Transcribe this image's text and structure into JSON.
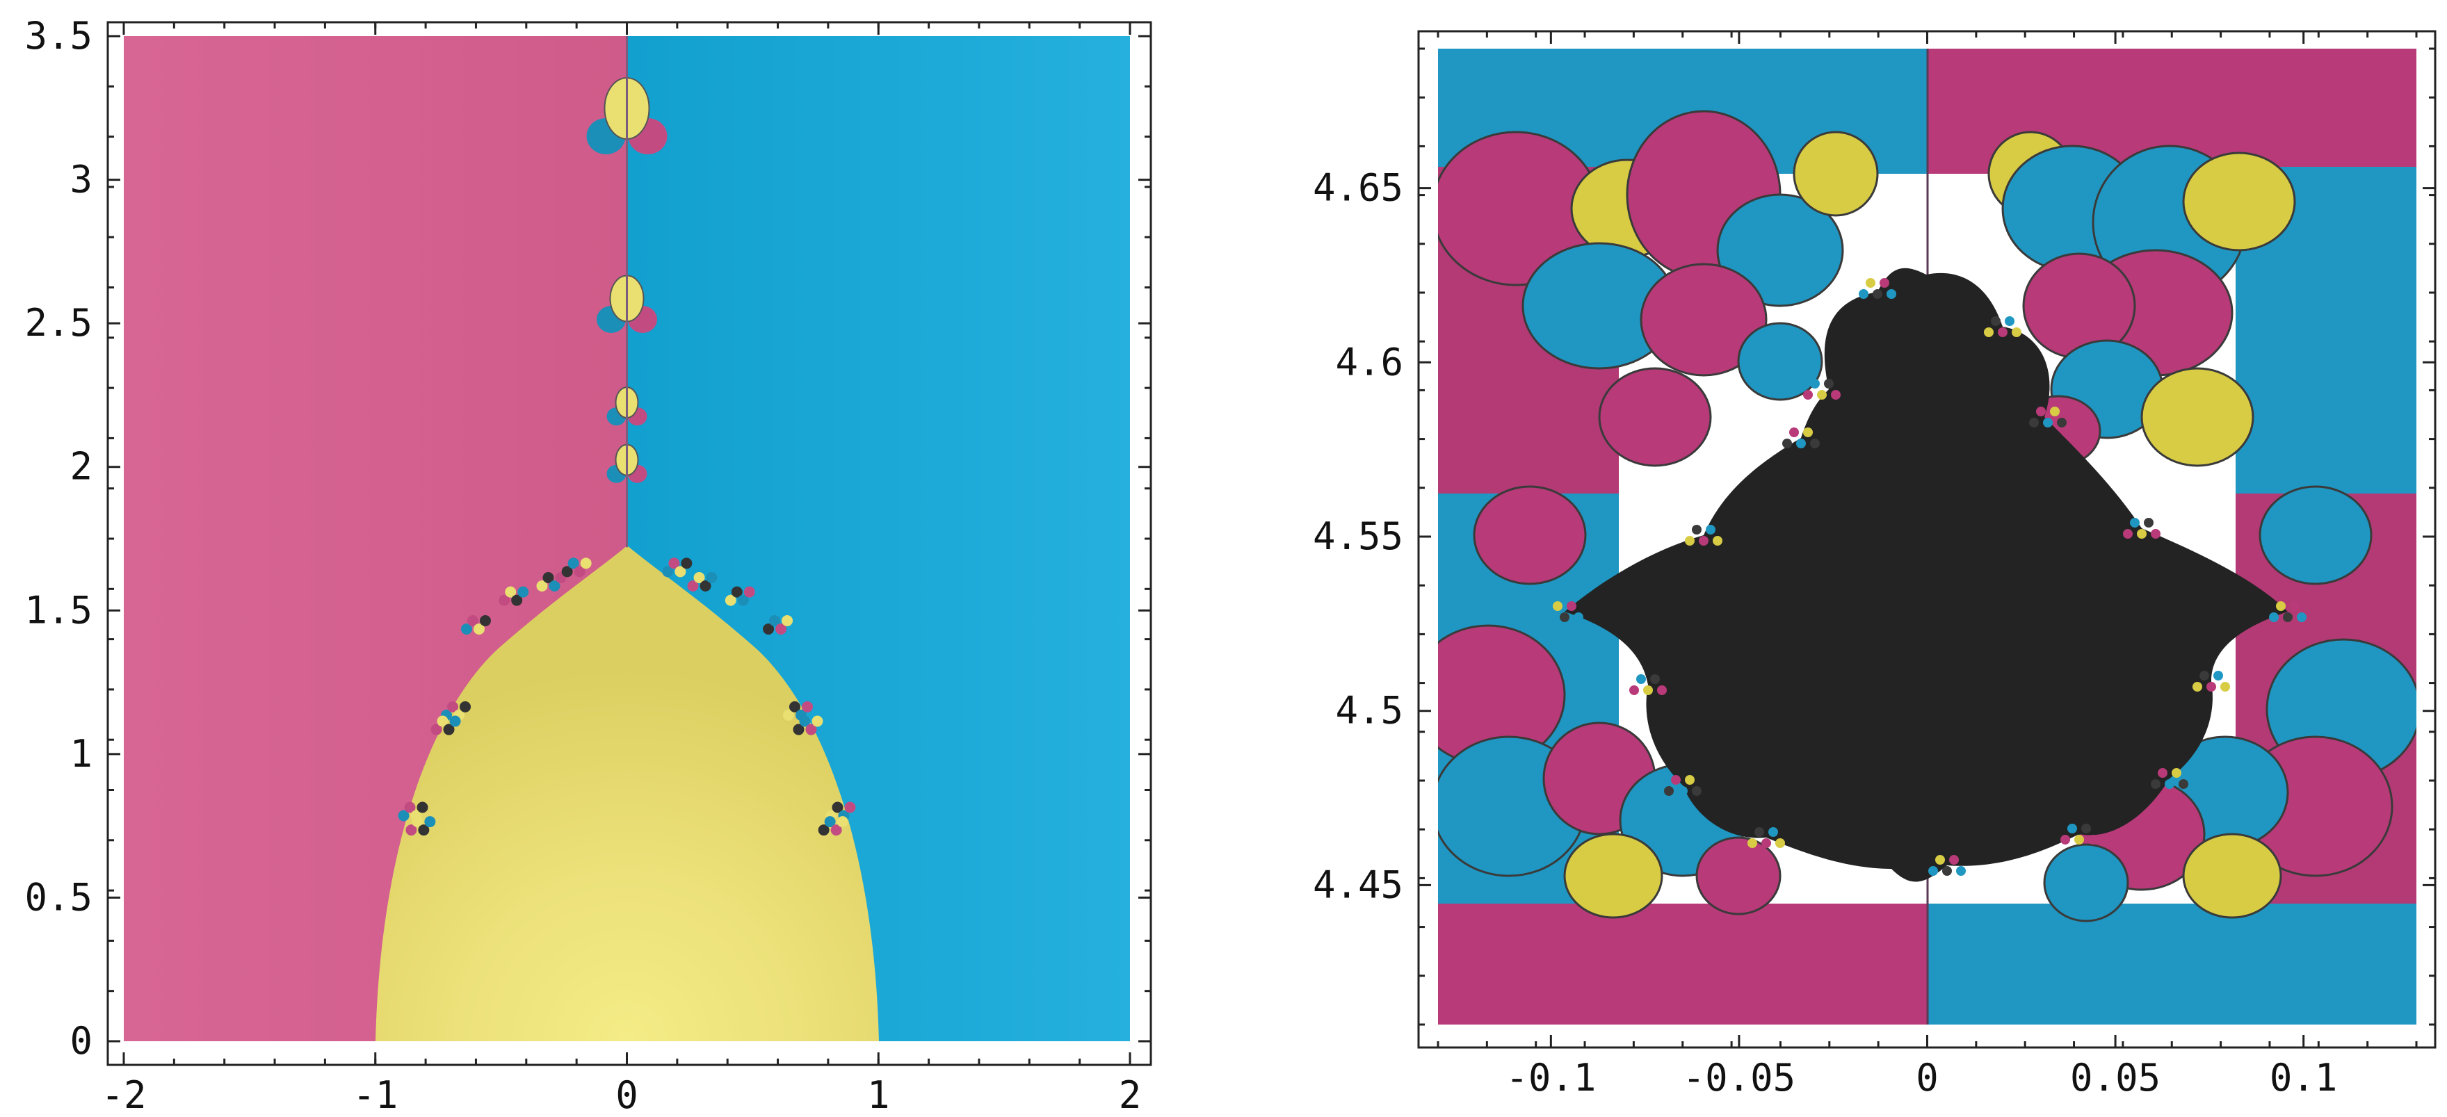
{
  "chart_data": [
    {
      "type": "heatmap",
      "title": "",
      "xlabel": "",
      "ylabel": "",
      "xlim": [
        -2,
        2
      ],
      "ylim": [
        0,
        3.5
      ],
      "x_ticks": [
        -2,
        -1,
        0,
        1,
        2
      ],
      "x_tick_labels": [
        "-2",
        "-1",
        "0",
        "1",
        "2"
      ],
      "y_ticks": [
        0,
        0.5,
        1,
        1.5,
        2,
        2.5,
        3,
        3.5
      ],
      "y_tick_labels": [
        "0",
        "0.5",
        "1",
        "1.5",
        "2",
        "2.5",
        "3",
        "3.5"
      ],
      "grid": false,
      "colors": {
        "left_basin": "#d4608f",
        "right_basin": "#1da8d6",
        "center_basin": "#e9e071",
        "center_highlight": "#f4ec86"
      },
      "regions": [
        {
          "basin": "center",
          "shape": "parabolic lobe",
          "x_range": [
            -1,
            1
          ],
          "y_range": [
            0,
            1.72
          ]
        },
        {
          "basin": "left",
          "x_range": [
            -2,
            0
          ],
          "y_range": [
            0,
            3.5
          ]
        },
        {
          "basin": "right",
          "x_range": [
            0,
            2
          ],
          "y_range": [
            0,
            3.5
          ]
        }
      ],
      "small_lobes": [
        {
          "x": 0,
          "y": 3.2
        },
        {
          "x": 0,
          "y": 2.55
        },
        {
          "x": 0,
          "y": 2.2
        },
        {
          "x": 0,
          "y": 2.0
        }
      ]
    },
    {
      "type": "heatmap",
      "title": "",
      "xlabel": "",
      "ylabel": "",
      "xlim": [
        -0.13,
        0.13
      ],
      "ylim": [
        4.41,
        4.69
      ],
      "x_ticks": [
        -0.1,
        -0.05,
        0,
        0.05,
        0.1
      ],
      "x_tick_labels": [
        "-0.1",
        "-0.05",
        "0",
        "0.05",
        "0.1"
      ],
      "y_ticks": [
        4.45,
        4.5,
        4.55,
        4.6,
        4.65
      ],
      "y_tick_labels": [
        "4.45",
        "4.5",
        "4.55",
        "4.6",
        "4.65"
      ],
      "grid": false,
      "colors": {
        "magenta_basin": "#b83a78",
        "cyan_basin": "#1f97c2",
        "yellow_basin": "#d8cc45",
        "black_set": "#232323"
      },
      "central_black_set": {
        "x_range": [
          -0.1,
          0.1
        ],
        "y_range": [
          4.44,
          4.62
        ]
      }
    }
  ]
}
